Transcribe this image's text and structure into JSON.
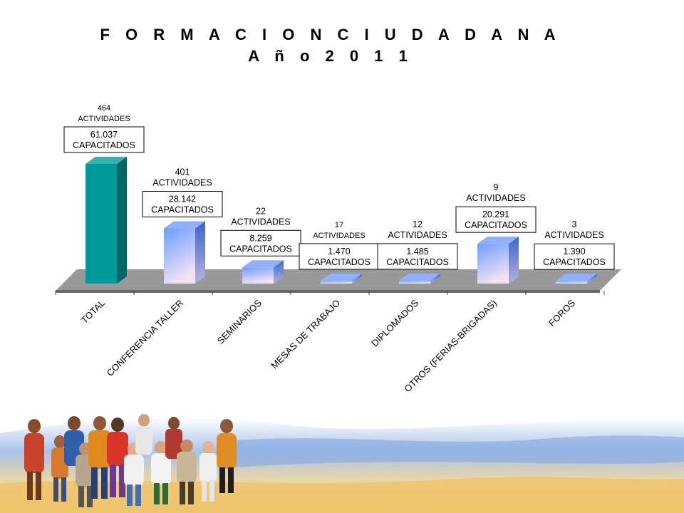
{
  "chart_data": {
    "type": "bar",
    "title": "F O R M A C I O N   C I U D A D A N A",
    "subtitle": "A ñ o   2 0 1 1",
    "xlabel": "",
    "ylabel": "",
    "grid": false,
    "legend": "none",
    "categories": [
      "TOTAL",
      "CONFERENCIA TALLER",
      "SEMINARIOS",
      "MESAS DE TRABAJO",
      "DIPLOMADOS",
      "OTROS (FERIAS-BRIGADAS)",
      "FOROS"
    ],
    "series": [
      {
        "values": [
          61037,
          28142,
          8259,
          1470,
          1485,
          20291,
          1390
        ]
      }
    ],
    "activities": [
      464,
      401,
      22,
      17,
      12,
      9,
      3
    ],
    "activity_labels": [
      "464\nACTIVIDADES",
      "401\nACTIVIDADES",
      "22\nACTIVIDADES",
      "17\nACTIVIDADES",
      "12\nACTIVIDADES",
      "9\nACTIVIDADES",
      "3\nACTIVIDADES"
    ],
    "capacitados_labels": [
      "61.037\nCAPACITADOS",
      "28.142\nCAPACITADOS",
      "8.259\nCAPACITADOS",
      "1.470\nCAPACITADOS",
      "1.485\nCAPACITADOS",
      "20.291\nCAPACITADOS",
      "1.390\nCAPACITADOS"
    ],
    "colors": {
      "total": "#009999",
      "total_side": "#006666",
      "bar_top": "#6699ff",
      "bar_bottom": "#e6d9f2",
      "floor": "#999999",
      "floor_front": "#6d6d6d"
    }
  }
}
